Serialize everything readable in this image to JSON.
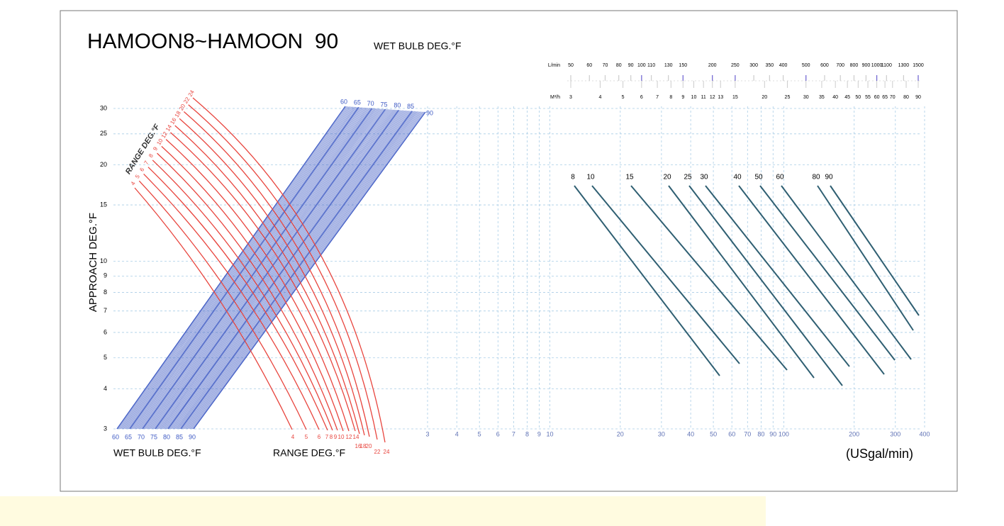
{
  "chart_data": {
    "type": "nomograph",
    "title": "HAMOON8~HAMOON  90",
    "subtitle": "WET BULB DEG.°F",
    "y_label": "APPROACH DEG.°F",
    "y_scale": "log",
    "ylim": [
      3,
      30
    ],
    "yticks": [
      3,
      4,
      5,
      6,
      7,
      8,
      9,
      10,
      15,
      20,
      25,
      30
    ],
    "wet_bulb_label": "WET BULB DEG.°F",
    "wet_bulb": [
      60,
      65,
      70,
      75,
      80,
      85,
      90
    ],
    "range_label": "RANGE DEG.°F",
    "range": [
      4,
      5,
      6,
      7,
      8,
      9,
      10,
      12,
      14,
      16,
      18,
      20,
      22,
      24
    ],
    "flow_label": "(USgal/min)",
    "x_scale": "log",
    "xlim": [
      3,
      400
    ],
    "xticks": [
      3,
      4,
      5,
      6,
      7,
      8,
      9,
      10,
      20,
      30,
      40,
      50,
      60,
      70,
      80,
      90,
      100,
      200,
      300,
      400
    ],
    "lpm_label": "L/min",
    "lpm_ticks": [
      50,
      60,
      70,
      80,
      90,
      100,
      110,
      130,
      150,
      200,
      250,
      300,
      350,
      400,
      500,
      600,
      700,
      800,
      900,
      1000,
      1100,
      1300,
      1500
    ],
    "m3h_label": "M³/h",
    "m3h_ticks": [
      3,
      4,
      5,
      6,
      7,
      8,
      9,
      10,
      11,
      12,
      13,
      15,
      20,
      25,
      30,
      35,
      40,
      45,
      50,
      55,
      60,
      65,
      70,
      80,
      90
    ],
    "models": [
      8,
      10,
      15,
      20,
      25,
      30,
      40,
      50,
      60,
      80,
      90
    ],
    "grid": true,
    "colors": {
      "wet_bulb": "#3f5bc4",
      "range": "#e8453e",
      "models": "#2f5f72",
      "grid": "#a9cde6"
    }
  }
}
